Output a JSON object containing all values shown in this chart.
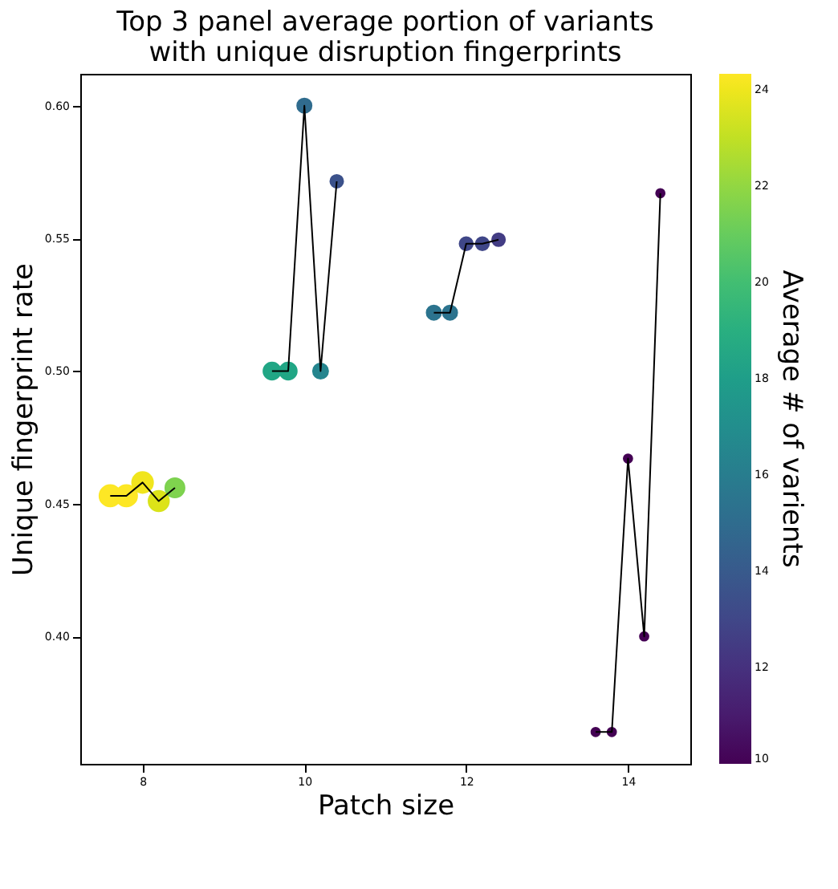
{
  "chart_data": {
    "type": "bubble",
    "title": "Top 3 panel average portion of variants\nwith unique disruption fingerprints",
    "xlabel": "Patch size",
    "ylabel": "Unique fingerprint rate",
    "clabel": "Average # of varients",
    "xlim": [
      7.23,
      14.77
    ],
    "xticks": [
      8,
      10,
      12,
      14
    ],
    "ylim": [
      0.352,
      0.612
    ],
    "yticks": [
      {
        "value": 0.4,
        "label": "0.40"
      },
      0.45,
      {
        "value": 0.5,
        "label": "0.50"
      },
      0.55,
      {
        "value": 0.6,
        "label": "0.60"
      }
    ],
    "clim": [
      10,
      24.33
    ],
    "cticks": [
      10,
      12,
      14,
      16,
      18,
      20,
      22,
      24
    ],
    "grid": false,
    "series": [
      {
        "type": "line",
        "color": "#000000",
        "x": [
          7.6,
          7.8,
          8.0,
          8.2,
          8.4
        ],
        "values": [
          0.453,
          0.453,
          0.458,
          0.451,
          0.456
        ]
      },
      {
        "type": "line",
        "color": "#000000",
        "x": [
          9.6,
          9.8,
          10.0,
          10.2,
          10.4
        ],
        "values": [
          0.5,
          0.5,
          0.6,
          0.5,
          0.5715
        ]
      },
      {
        "type": "line",
        "color": "#000000",
        "x": [
          11.6,
          11.8,
          12.0,
          12.2,
          12.4
        ],
        "values": [
          0.522,
          0.522,
          0.548,
          0.548,
          0.5495
        ]
      },
      {
        "type": "line",
        "color": "#000000",
        "x": [
          13.6,
          13.8,
          14.0,
          14.2,
          14.4
        ],
        "values": [
          0.364,
          0.364,
          0.467,
          0.4,
          0.567
        ]
      },
      {
        "marker": "circle",
        "colors": [
          "#fde725",
          "#fde725",
          "#f1e51d",
          "#dde318",
          "#7fd34e"
        ],
        "x": [
          7.6,
          7.8,
          8.0,
          8.2,
          8.4
        ],
        "values": [
          0.453,
          0.453,
          0.458,
          0.451,
          0.456
        ],
        "cvalues": [
          24.3,
          24.3,
          24,
          23.5,
          21.5
        ],
        "sizes": [
          1,
          1,
          0.95,
          0.9,
          0.8
        ]
      },
      {
        "marker": "circle",
        "colors": [
          "#21a685",
          "#21a685",
          "#306b8e",
          "#25858e",
          "#3b528b"
        ],
        "x": [
          9.6,
          9.8,
          10.0,
          10.2,
          10.4
        ],
        "values": [
          0.5,
          0.5,
          0.6,
          0.5,
          0.5715
        ],
        "cvalues": [
          18.5,
          18.5,
          15,
          16.5,
          13.5
        ],
        "sizes": [
          0.64,
          0.64,
          0.45,
          0.5,
          0.36
        ]
      },
      {
        "marker": "circle",
        "colors": [
          "#2c738e",
          "#2c738e",
          "#3f4788",
          "#3f4788",
          "#433d84"
        ],
        "x": [
          11.6,
          11.8,
          12.0,
          12.2,
          12.4
        ],
        "values": [
          0.522,
          0.522,
          0.548,
          0.548,
          0.5495
        ],
        "cvalues": [
          15.5,
          15.5,
          13,
          13,
          12.5
        ],
        "sizes": [
          0.45,
          0.45,
          0.38,
          0.38,
          0.36
        ]
      },
      {
        "marker": "circle",
        "color": "#440154",
        "x": [
          13.6,
          13.8,
          14.0,
          14.2,
          14.4
        ],
        "values": [
          0.364,
          0.364,
          0.467,
          0.4,
          0.567
        ],
        "cvalues": [
          10,
          10,
          10,
          10,
          10
        ],
        "sizes": [
          0.16,
          0.16,
          0.16,
          0.16,
          0.16
        ]
      }
    ]
  }
}
